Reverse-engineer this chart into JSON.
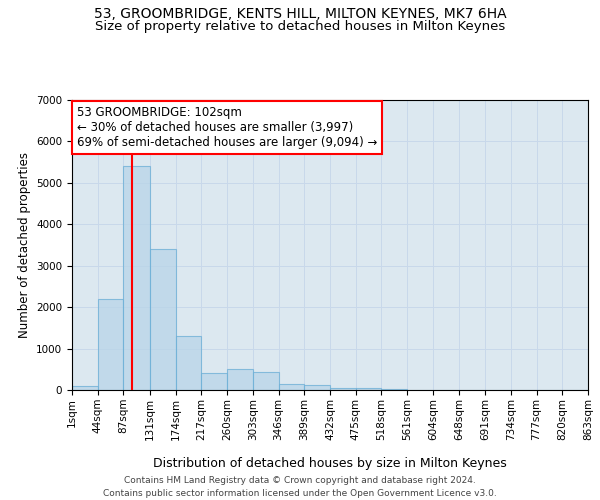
{
  "title": "53, GROOMBRIDGE, KENTS HILL, MILTON KEYNES, MK7 6HA",
  "subtitle": "Size of property relative to detached houses in Milton Keynes",
  "xlabel": "Distribution of detached houses by size in Milton Keynes",
  "ylabel": "Number of detached properties",
  "footer_line1": "Contains HM Land Registry data © Crown copyright and database right 2024.",
  "footer_line2": "Contains public sector information licensed under the Open Government Licence v3.0.",
  "bar_edges": [
    1,
    44,
    87,
    131,
    174,
    217,
    260,
    303,
    346,
    389,
    432,
    475,
    518,
    561,
    604,
    648,
    691,
    734,
    777,
    820,
    863
  ],
  "bar_heights": [
    100,
    2200,
    5400,
    3400,
    1300,
    400,
    500,
    430,
    150,
    130,
    50,
    50,
    20,
    10,
    5,
    5,
    3,
    2,
    1,
    1
  ],
  "bar_color": "#b8d4e8",
  "bar_edge_color": "#6aaed6",
  "bar_alpha": 0.75,
  "grid_color": "#c8d8ea",
  "bg_color": "#dce8f0",
  "property_size": 102,
  "annotation_line1": "53 GROOMBRIDGE: 102sqm",
  "annotation_line2": "← 30% of detached houses are smaller (3,997)",
  "annotation_line3": "69% of semi-detached houses are larger (9,094) →",
  "annotation_box_color": "white",
  "annotation_box_edge_color": "red",
  "vline_color": "red",
  "ylim": [
    0,
    7000
  ],
  "yticks": [
    0,
    1000,
    2000,
    3000,
    4000,
    5000,
    6000,
    7000
  ],
  "title_fontsize": 10,
  "subtitle_fontsize": 9.5,
  "xlabel_fontsize": 9,
  "ylabel_fontsize": 8.5,
  "tick_fontsize": 7.5,
  "annotation_fontsize": 8.5,
  "footer_fontsize": 6.5
}
